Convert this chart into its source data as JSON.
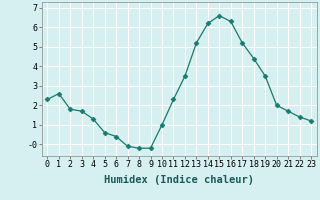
{
  "x": [
    0,
    1,
    2,
    3,
    4,
    5,
    6,
    7,
    8,
    9,
    10,
    11,
    12,
    13,
    14,
    15,
    16,
    17,
    18,
    19,
    20,
    21,
    22,
    23
  ],
  "y": [
    2.3,
    2.6,
    1.8,
    1.7,
    1.3,
    0.6,
    0.4,
    -0.1,
    -0.2,
    -0.2,
    1.0,
    2.3,
    3.5,
    5.2,
    6.2,
    6.6,
    6.3,
    5.2,
    4.4,
    3.5,
    2.0,
    1.7,
    1.4,
    1.2
  ],
  "line_color": "#1a7a6e",
  "marker": "D",
  "marker_size": 2.5,
  "background_color": "#d6eff0",
  "grid_color": "#ffffff",
  "xlabel": "Humidex (Indice chaleur)",
  "xlabel_fontsize": 7.5,
  "tick_fontsize": 6,
  "ylim": [
    -0.6,
    7.3
  ],
  "xlim": [
    -0.5,
    23.5
  ],
  "yticks": [
    0,
    1,
    2,
    3,
    4,
    5,
    6,
    7
  ],
  "ytick_labels": [
    "-0",
    "1",
    "2",
    "3",
    "4",
    "5",
    "6",
    "7"
  ]
}
